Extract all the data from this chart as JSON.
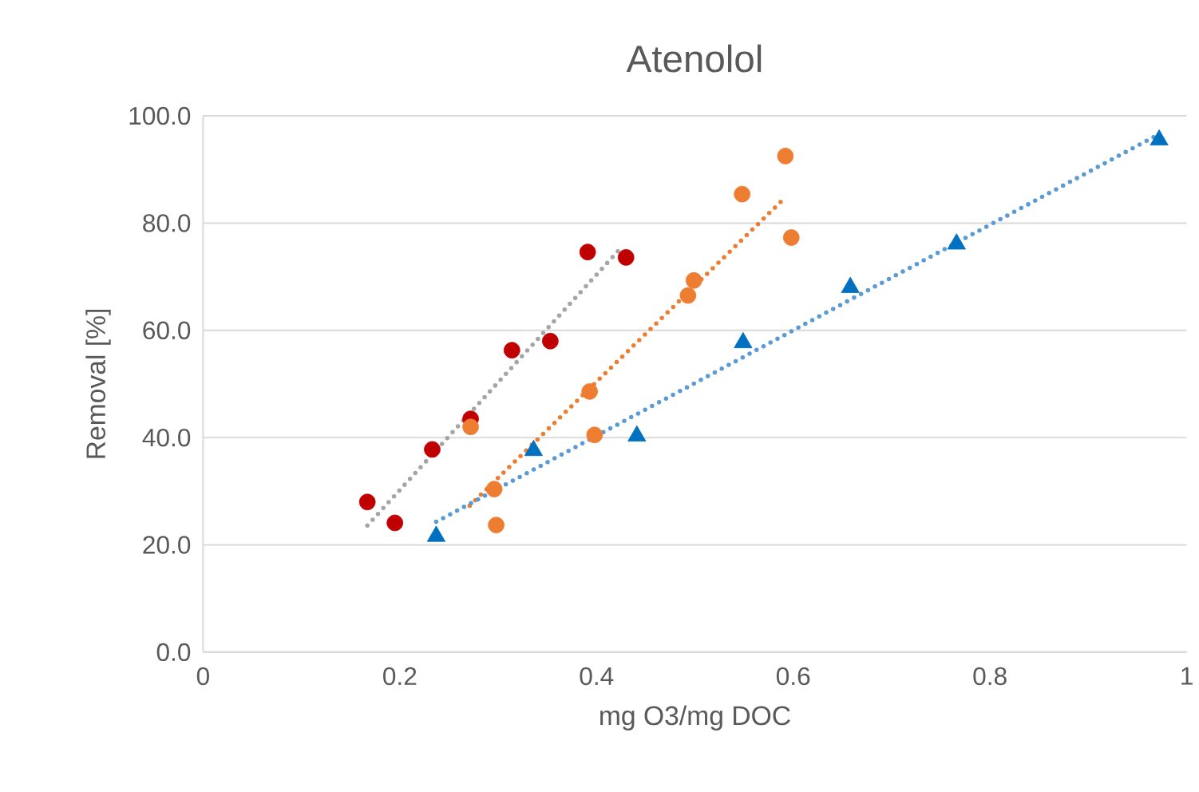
{
  "chart_data": {
    "type": "scatter",
    "title": "Atenolol",
    "xlabel": "mg O3/mg DOC",
    "ylabel": "Removal [%]",
    "xlim": [
      0,
      1
    ],
    "xticks": [
      0,
      0.2,
      0.4,
      0.6,
      0.8,
      1
    ],
    "ylim": [
      0,
      100
    ],
    "yticks": [
      {
        "value": 0,
        "label": "0.0"
      },
      {
        "value": 20,
        "label": "20.0"
      },
      {
        "value": 40,
        "label": "40.0"
      },
      {
        "value": 60,
        "label": "60.0"
      },
      {
        "value": 80,
        "label": "80.0"
      },
      {
        "value": 100,
        "label": "100.0"
      }
    ],
    "grid": "y",
    "series": [
      {
        "type": "line",
        "line_style": "dotted",
        "marker": "none",
        "color": "#a5a5a5",
        "x": [
          0.167,
          0.426
        ],
        "values": [
          23.6,
          75.6
        ]
      },
      {
        "type": "line",
        "line_style": "dotted",
        "marker": "none",
        "color": "#ed7d31",
        "x": [
          0.271,
          0.592
        ],
        "values": [
          27.3,
          84.8
        ]
      },
      {
        "type": "line",
        "line_style": "dotted",
        "marker": "none",
        "color": "#5b9bd5",
        "x": [
          0.237,
          0.972
        ],
        "values": [
          24.3,
          96.6
        ]
      },
      {
        "type": "scatter",
        "marker": "circle",
        "color": "#c00000",
        "x": [
          0.167,
          0.195,
          0.233,
          0.272,
          0.314,
          0.353,
          0.391,
          0.43
        ],
        "values": [
          28.0,
          24.1,
          37.8,
          43.5,
          56.3,
          58.0,
          74.6,
          73.6
        ]
      },
      {
        "type": "scatter",
        "marker": "circle",
        "color": "#ed7d31",
        "x": [
          0.272,
          0.296,
          0.298,
          0.393,
          0.398,
          0.493,
          0.499,
          0.548,
          0.592,
          0.598
        ],
        "values": [
          42.0,
          30.4,
          23.7,
          48.6,
          40.5,
          66.5,
          69.3,
          85.4,
          92.5,
          77.3
        ]
      },
      {
        "type": "scatter",
        "marker": "triangle",
        "color": "#0070c0",
        "x": [
          0.237,
          0.336,
          0.441,
          0.549,
          0.658,
          0.766,
          0.972
        ],
        "values": [
          21.6,
          37.6,
          40.3,
          57.7,
          68.0,
          76.1,
          95.5
        ]
      }
    ]
  }
}
